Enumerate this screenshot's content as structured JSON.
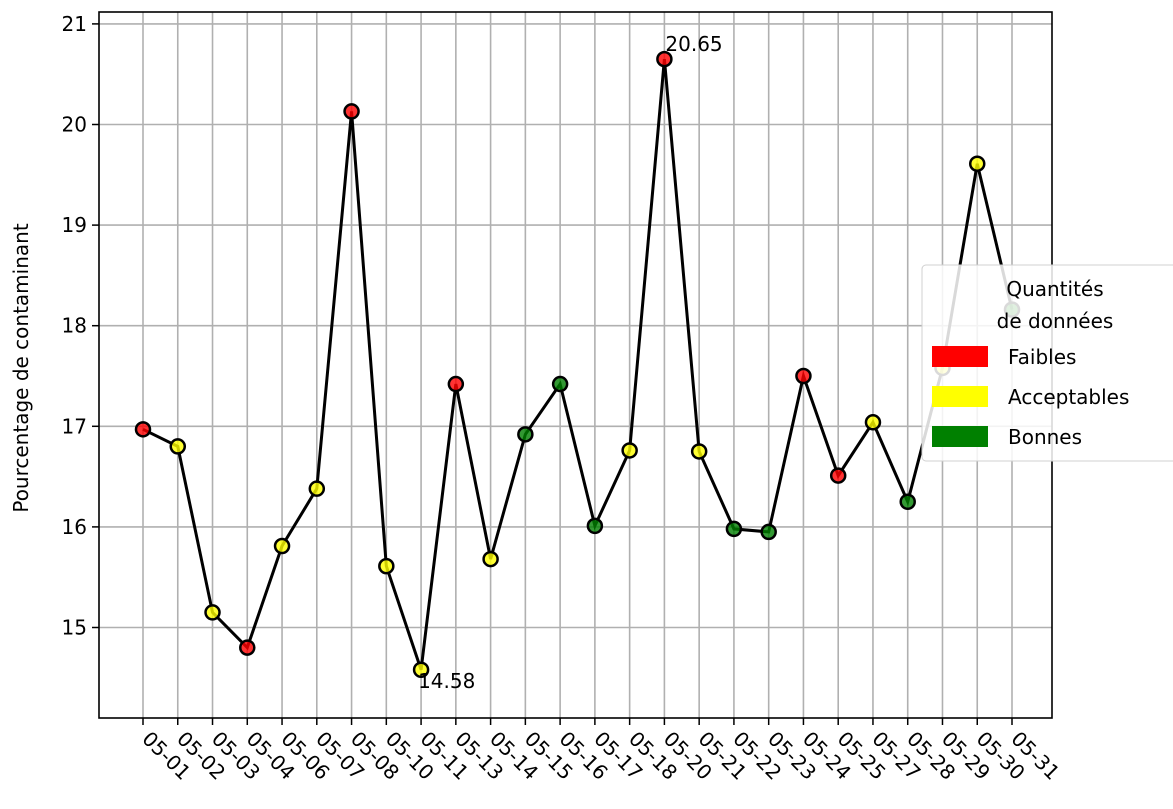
{
  "chart_data": {
    "type": "line",
    "title": "",
    "xlabel": "",
    "ylabel": "Pourcentage de contaminant",
    "categories": [
      "05-01",
      "05-02",
      "05-03",
      "05-04",
      "05-06",
      "05-07",
      "05-08",
      "05-10",
      "05-11",
      "05-13",
      "05-14",
      "05-15",
      "05-16",
      "05-17",
      "05-18",
      "05-20",
      "05-21",
      "05-22",
      "05-23",
      "05-24",
      "05-25",
      "05-27",
      "05-28",
      "05-29",
      "05-30",
      "05-31"
    ],
    "values": [
      16.97,
      16.8,
      15.15,
      14.8,
      15.81,
      16.38,
      20.13,
      15.61,
      14.58,
      17.42,
      15.68,
      16.92,
      17.42,
      16.01,
      16.76,
      20.65,
      16.75,
      15.98,
      15.95,
      17.5,
      16.51,
      17.04,
      16.25,
      17.58,
      19.61,
      18.16
    ],
    "quality": [
      "faibles",
      "acceptables",
      "acceptables",
      "faibles",
      "acceptables",
      "acceptables",
      "faibles",
      "acceptables",
      "acceptables",
      "faibles",
      "acceptables",
      "bonnes",
      "bonnes",
      "bonnes",
      "acceptables",
      "faibles",
      "acceptables",
      "bonnes",
      "bonnes",
      "faibles",
      "faibles",
      "acceptables",
      "bonnes",
      "acceptables",
      "acceptables",
      "bonnes"
    ],
    "yticks": [
      "15",
      "16",
      "17",
      "18",
      "19",
      "20",
      "21"
    ],
    "ylim": [
      14.1,
      21.15
    ],
    "grid": true,
    "annotations": [
      {
        "text": "20.65",
        "index": 15
      },
      {
        "text": "14.58",
        "index": 8
      }
    ],
    "line_color": "#000000",
    "legend": {
      "title_line1": "Quantités",
      "title_line2": "de données",
      "placement": "right",
      "entries": [
        {
          "key": "faibles",
          "label": "Faibles",
          "color": "#ff0000"
        },
        {
          "key": "acceptables",
          "label": "Acceptables",
          "color": "#ffff00"
        },
        {
          "key": "bonnes",
          "label": "Bonnes",
          "color": "#008000"
        }
      ]
    }
  }
}
